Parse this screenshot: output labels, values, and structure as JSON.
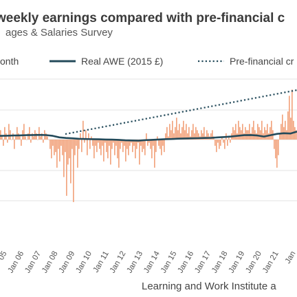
{
  "chart_data": {
    "type": "bar",
    "title": "weekly earnings compared with pre-financial c",
    "subtitle": "ages & Salaries Survey",
    "source": "Learning and Work Institute a",
    "legend": [
      {
        "name": "onth",
        "style": "bar",
        "color": "#f2a57f"
      },
      {
        "name": "Real AWE (2015 £)",
        "style": "solid-line",
        "color": "#234a5a"
      },
      {
        "name": "Pre-financial cr",
        "style": "dotted-line",
        "color": "#234a5a"
      }
    ],
    "x_tick_labels": [
      "05",
      "Jan 06",
      "Jan 07",
      "Jan 08",
      "Jan 09",
      "Jan 10",
      "Jan 11",
      "Jan 12",
      "Jan 13",
      "Jan 14",
      "Jan 15",
      "Jan 16",
      "Jan 17",
      "Jan 18",
      "Jan 19",
      "Jan 20",
      "Jan 21",
      "Jan"
    ],
    "grid": true,
    "legend_placement": "top",
    "colors": {
      "bars": "#f2a57f",
      "line": "#234a5a",
      "grid": "#e3e3e3"
    },
    "real_awe_level": [
      0.6,
      0.61,
      0.62,
      0.63,
      0.64,
      0.65,
      0.66,
      0.645,
      0.6,
      0.51,
      0.47,
      0.45,
      0.42,
      0.41,
      0.4,
      0.39,
      0.38,
      0.37,
      0.36,
      0.33,
      0.32,
      0.31,
      0.34,
      0.36,
      0.38,
      0.4,
      0.41,
      0.43,
      0.44,
      0.45,
      0.46,
      0.47,
      0.48,
      0.51,
      0.53,
      0.56,
      0.6,
      0.64,
      0.65,
      0.62,
      0.56,
      0.64,
      0.72,
      0.76,
      0.74,
      0.86
    ],
    "pre_crisis_trend_start": 0.445,
    "pre_crisis_trend_end": 1.0,
    "monthly_change_pattern": [
      3,
      1,
      -2,
      4,
      2,
      -1,
      5,
      3,
      0,
      2,
      -3,
      1,
      4,
      2,
      1,
      -2,
      3,
      5,
      1,
      0,
      2,
      4,
      -1,
      2,
      1,
      3,
      2,
      0,
      4,
      1,
      2,
      -1,
      3,
      2,
      1,
      0,
      -3,
      -6,
      -2,
      -5,
      -4,
      -9,
      -3,
      -7,
      -2,
      -5,
      -12,
      -4,
      -18,
      -8,
      -6,
      -14,
      -3,
      -20,
      -5,
      -2,
      -9,
      -3,
      2,
      -4,
      6,
      -1,
      3,
      -5,
      2,
      -3,
      1,
      -2,
      -6,
      -2,
      -4,
      -1,
      -3,
      -5,
      -2,
      -7,
      -1,
      -4,
      -6,
      -2,
      -8,
      -3,
      -1,
      -5,
      -2,
      -6,
      -9,
      -3,
      -1,
      -4,
      -2,
      -7,
      -3,
      -5,
      -2,
      -1,
      -4,
      -2,
      -6,
      -3,
      -1,
      -8,
      -2,
      -4,
      -3,
      -5,
      2,
      -2,
      -1,
      -3,
      -6,
      -2,
      -9,
      -4,
      1,
      -2,
      -3,
      -5,
      -2,
      -4,
      2,
      4,
      1,
      5,
      3,
      6,
      2,
      4,
      7,
      3,
      5,
      2,
      4,
      6,
      3,
      5,
      2,
      4,
      1,
      3,
      5,
      2,
      4,
      3,
      2,
      1,
      3,
      2,
      4,
      1,
      3,
      2,
      1,
      2,
      3,
      1,
      -2,
      -4,
      -1,
      -3,
      -2,
      1,
      -1,
      -3,
      2,
      -2,
      1,
      -1,
      2,
      4,
      3,
      5,
      2,
      6,
      4,
      3,
      5,
      2,
      4,
      3,
      3,
      5,
      2,
      4,
      6,
      3,
      2,
      5,
      4,
      3,
      6,
      2,
      4,
      3,
      5,
      2,
      4,
      6,
      3,
      -3,
      -6,
      -9,
      -5,
      2,
      5,
      8,
      4,
      6,
      3,
      9,
      14,
      7,
      16,
      6,
      4,
      3
    ]
  }
}
